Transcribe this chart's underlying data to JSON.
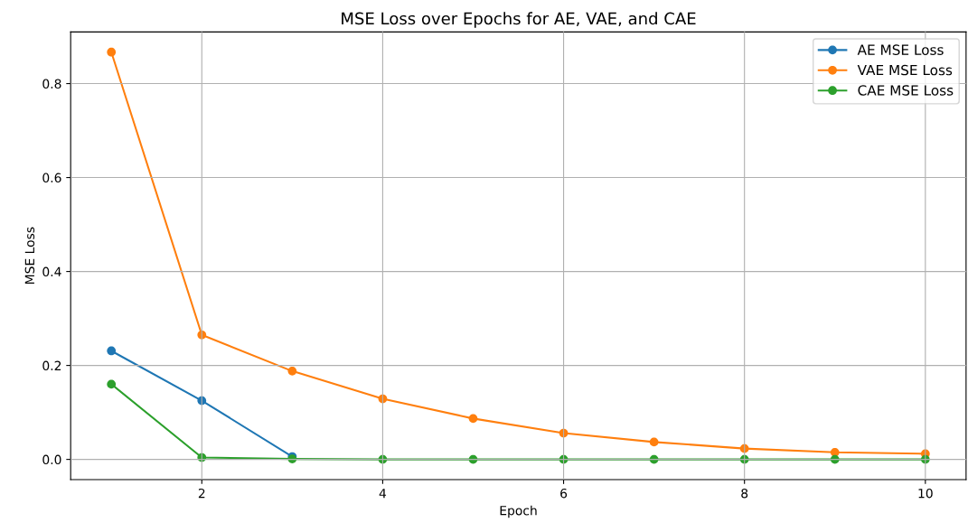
{
  "chart_data": {
    "type": "line",
    "title": "MSE Loss over Epochs for AE, VAE, and CAE",
    "xlabel": "Epoch",
    "ylabel": "MSE Loss",
    "x": [
      1,
      2,
      3,
      4,
      5,
      6,
      7,
      8,
      9,
      10
    ],
    "series": [
      {
        "name": "AE MSE Loss",
        "color": "#1f77b4",
        "values": [
          0.231,
          0.125,
          0.006,
          null,
          null,
          null,
          null,
          null,
          null,
          null
        ]
      },
      {
        "name": "VAE MSE Loss",
        "color": "#ff7f0e",
        "values": [
          0.867,
          0.265,
          0.188,
          0.129,
          0.087,
          0.056,
          0.037,
          0.023,
          0.015,
          0.012
        ]
      },
      {
        "name": "CAE MSE Loss",
        "color": "#2ca02c",
        "values": [
          0.16,
          0.004,
          0.001,
          0.0,
          0.0,
          0.0,
          0.0,
          0.0,
          0.0,
          0.0
        ]
      }
    ],
    "xlim": [
      0.55,
      10.45
    ],
    "ylim": [
      -0.043,
      0.91
    ],
    "xticks": [
      2,
      4,
      6,
      8,
      10
    ],
    "yticks": [
      {
        "value": 0,
        "label": "0.0"
      },
      0.2,
      0.4,
      0.6,
      0.8
    ],
    "grid": true,
    "legend": "top right",
    "marker": "circle",
    "line_style": "solid"
  }
}
